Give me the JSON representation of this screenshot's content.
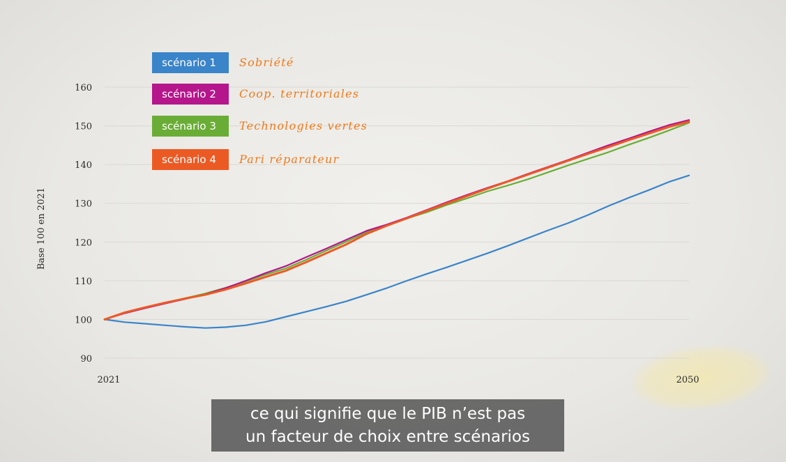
{
  "chart_data": {
    "type": "line",
    "ylabel": "Base 100 en 2021",
    "ylim": [
      90,
      160
    ],
    "yticks": [
      90,
      100,
      110,
      120,
      130,
      140,
      150,
      160
    ],
    "xlim": [
      2021,
      2050
    ],
    "xticks": [
      2021,
      2050
    ],
    "grid": true,
    "legend_position": "top-left",
    "x": [
      2021,
      2022,
      2023,
      2024,
      2025,
      2026,
      2027,
      2028,
      2029,
      2030,
      2031,
      2032,
      2033,
      2034,
      2035,
      2036,
      2037,
      2038,
      2039,
      2040,
      2041,
      2042,
      2043,
      2044,
      2045,
      2046,
      2047,
      2048,
      2049,
      2050
    ],
    "series": [
      {
        "name": "scénario 1",
        "description": "Sobriété",
        "color": "#3a84c9",
        "values": [
          100,
          99.3,
          98.9,
          98.5,
          98.1,
          97.8,
          98.0,
          98.5,
          99.4,
          100.7,
          102.0,
          103.3,
          104.7,
          106.4,
          108.1,
          110.0,
          111.8,
          113.5,
          115.3,
          117.1,
          119.0,
          121.0,
          123.0,
          124.9,
          127.0,
          129.3,
          131.4,
          133.4,
          135.5,
          137.2
        ]
      },
      {
        "name": "scénario 2",
        "description": "Coop. territoriales",
        "color": "#b5168c",
        "values": [
          100,
          101.6,
          102.9,
          104.1,
          105.3,
          106.5,
          108.1,
          110.0,
          112.0,
          113.8,
          116.1,
          118.3,
          120.6,
          122.9,
          124.5,
          126.3,
          128.3,
          130.3,
          132.2,
          134.0,
          135.7,
          137.6,
          139.4,
          141.2,
          143.1,
          145.0,
          146.7,
          148.5,
          150.2,
          151.5
        ]
      },
      {
        "name": "scénario 3",
        "description": "Technologies vertes",
        "color": "#6aad36",
        "values": [
          100,
          101.7,
          103.0,
          104.3,
          105.5,
          106.7,
          108.2,
          109.8,
          111.6,
          113.2,
          115.4,
          117.8,
          120.1,
          122.5,
          124.4,
          126.1,
          127.7,
          129.6,
          131.3,
          133.1,
          134.6,
          136.2,
          138.0,
          139.8,
          141.5,
          143.2,
          145.1,
          146.9,
          148.8,
          150.8
        ]
      },
      {
        "name": "scénario 4",
        "description": "Pari réparateur",
        "color": "#ec5a24",
        "values": [
          100,
          101.8,
          103.1,
          104.3,
          105.4,
          106.4,
          107.7,
          109.3,
          111.0,
          112.6,
          114.8,
          117.1,
          119.4,
          122.1,
          124.2,
          126.1,
          128.1,
          130.0,
          131.9,
          133.8,
          135.6,
          137.4,
          139.2,
          141.0,
          142.8,
          144.5,
          146.3,
          148.0,
          149.7,
          151.1
        ]
      }
    ]
  },
  "subtitle": {
    "line1": "ce qui signifie que le PIB n’est pas",
    "line2": "un facteur de choix entre scénarios"
  }
}
